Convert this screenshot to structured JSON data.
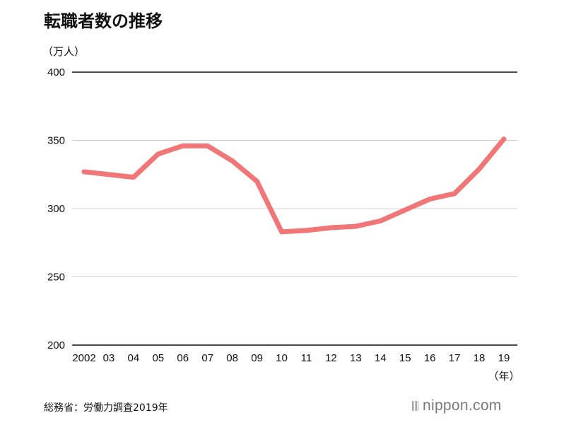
{
  "title": "転職者数の推移",
  "unit_label": "（万人）",
  "source": "総務省：労働力調査2019年",
  "logo": {
    "pre": "nippon",
    "dot": ".",
    "post": "com"
  },
  "colors": {
    "line": "#f07678",
    "grid": "#d0d0d0",
    "top_axis": "#111111",
    "bottom_axis": "#111111"
  },
  "chart_data": {
    "type": "line",
    "title": "転職者数の推移",
    "ylabel": "（万人）",
    "xlabel": "（年）",
    "categories": [
      "2002",
      "03",
      "04",
      "05",
      "06",
      "07",
      "08",
      "09",
      "10",
      "11",
      "12",
      "13",
      "14",
      "15",
      "16",
      "17",
      "18",
      "19"
    ],
    "series": [
      {
        "values": [
          327,
          325,
          323,
          340,
          346,
          346,
          335,
          320,
          283,
          284,
          286,
          287,
          291,
          299,
          307,
          311,
          329,
          351
        ]
      }
    ],
    "ylim": [
      200,
      400
    ],
    "yticks": [
      200,
      250,
      300,
      350,
      400
    ],
    "grid": true
  }
}
